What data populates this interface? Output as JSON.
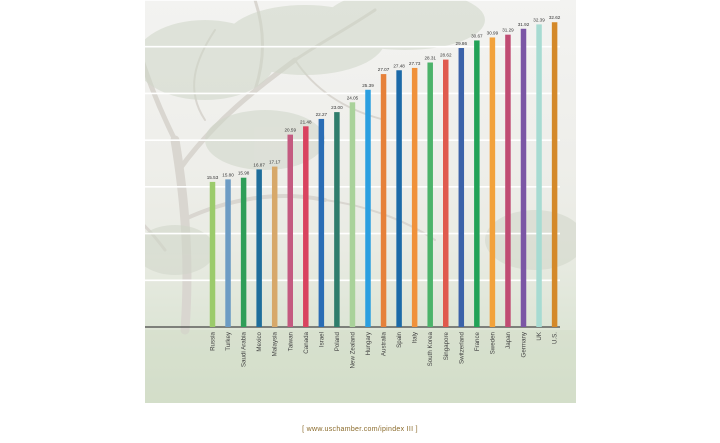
{
  "chart_data": {
    "type": "bar",
    "title": "",
    "xlabel": "",
    "ylabel": "",
    "categories": [
      "Russia",
      "Turkey",
      "Saudi Arabia",
      "Mexico",
      "Malaysia",
      "Taiwan",
      "Canada",
      "Israel",
      "Poland",
      "New Zealand",
      "Hungary",
      "Australia",
      "Spain",
      "Italy",
      "South Korea",
      "Singapore",
      "Switzerland",
      "France",
      "Sweden",
      "Japan",
      "Germany",
      "UK",
      "U.S."
    ],
    "values": [
      15.53,
      15.8,
      15.98,
      16.87,
      17.17,
      20.59,
      21.48,
      22.27,
      23.0,
      24.05,
      25.39,
      27.07,
      27.48,
      27.73,
      28.31,
      28.62,
      29.86,
      30.67,
      30.99,
      31.29,
      31.92,
      32.39,
      32.62
    ],
    "value_labels": [
      "15.53",
      "15.80",
      "15.98",
      "16.87",
      "17.17",
      "20.59",
      "21.48",
      "22.27",
      "23.00",
      "24.05",
      "25.39",
      "27.07",
      "27.48",
      "27.73",
      "28.31",
      "28.62",
      "29.86",
      "30.67",
      "30.99",
      "31.29",
      "31.92",
      "32.39",
      "32.62"
    ],
    "colors": [
      "#9bcb6b",
      "#6d9cc4",
      "#2e9e58",
      "#1f6e9c",
      "#d7a86a",
      "#c45a80",
      "#d9435f",
      "#2a6db5",
      "#2f7d6c",
      "#a9d29a",
      "#2b9fe0",
      "#e6813a",
      "#1c6aa8",
      "#f0913a",
      "#4cb36a",
      "#e05a4e",
      "#3b62a9",
      "#22a257",
      "#f2a23b",
      "#c04c73",
      "#7b56a5",
      "#a7dbd2",
      "#d4892a"
    ],
    "ylim": [
      0,
      35
    ],
    "grid": true,
    "legend": "none"
  },
  "source": "[ www.uschamber.com/ipindex III ]"
}
